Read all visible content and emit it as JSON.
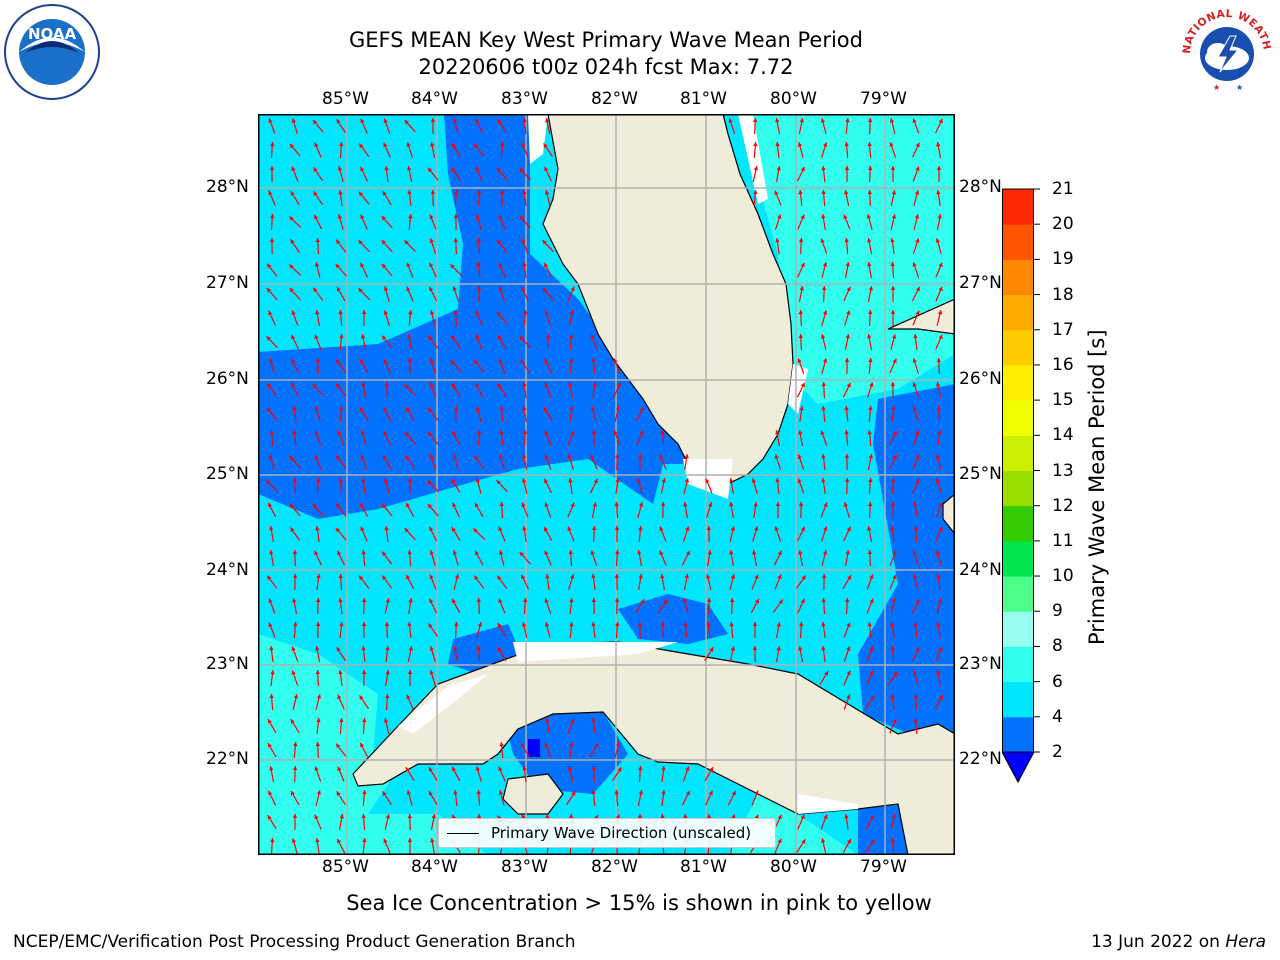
{
  "title_line1": "GEFS MEAN Key West Primary Wave Mean Period",
  "title_line2": "20220606 t00z 024h fcst   Max: 7.72",
  "lon_labels": [
    "85°W",
    "84°W",
    "83°W",
    "82°W",
    "81°W",
    "80°W",
    "79°W"
  ],
  "lat_labels": [
    "28°N",
    "27°N",
    "26°N",
    "25°N",
    "24°N",
    "23°N",
    "22°N"
  ],
  "colorbar": {
    "label": "Primary Wave Mean Period [s]",
    "ticks": [
      "2",
      "4",
      "6",
      "8",
      "9",
      "10",
      "11",
      "12",
      "13",
      "14",
      "15",
      "16",
      "17",
      "18",
      "19",
      "20",
      "21"
    ],
    "colors": [
      "#0072ff",
      "#00e6ff",
      "#33ffee",
      "#99ffee",
      "#4dff8a",
      "#00e64d",
      "#33cc00",
      "#99dd00",
      "#ccee00",
      "#eeff00",
      "#ffee00",
      "#ffcc00",
      "#ffaa00",
      "#ff8800",
      "#ff5500",
      "#ff2a00",
      "#ff0000"
    ],
    "under_color": "#0000ff"
  },
  "legend_label": "Primary Wave Direction (unscaled)",
  "sea_ice_note": "Sea Ice Concentration > 15% is shown in pink to yellow",
  "footer_left": "NCEP/EMC/Verification Post Processing Product Generation Branch",
  "footer_date": "13 Jun 2022 on",
  "footer_host": "Hera",
  "logos": {
    "left": "NOAA",
    "right": "NATIONAL WEATHER SERVICE"
  }
}
